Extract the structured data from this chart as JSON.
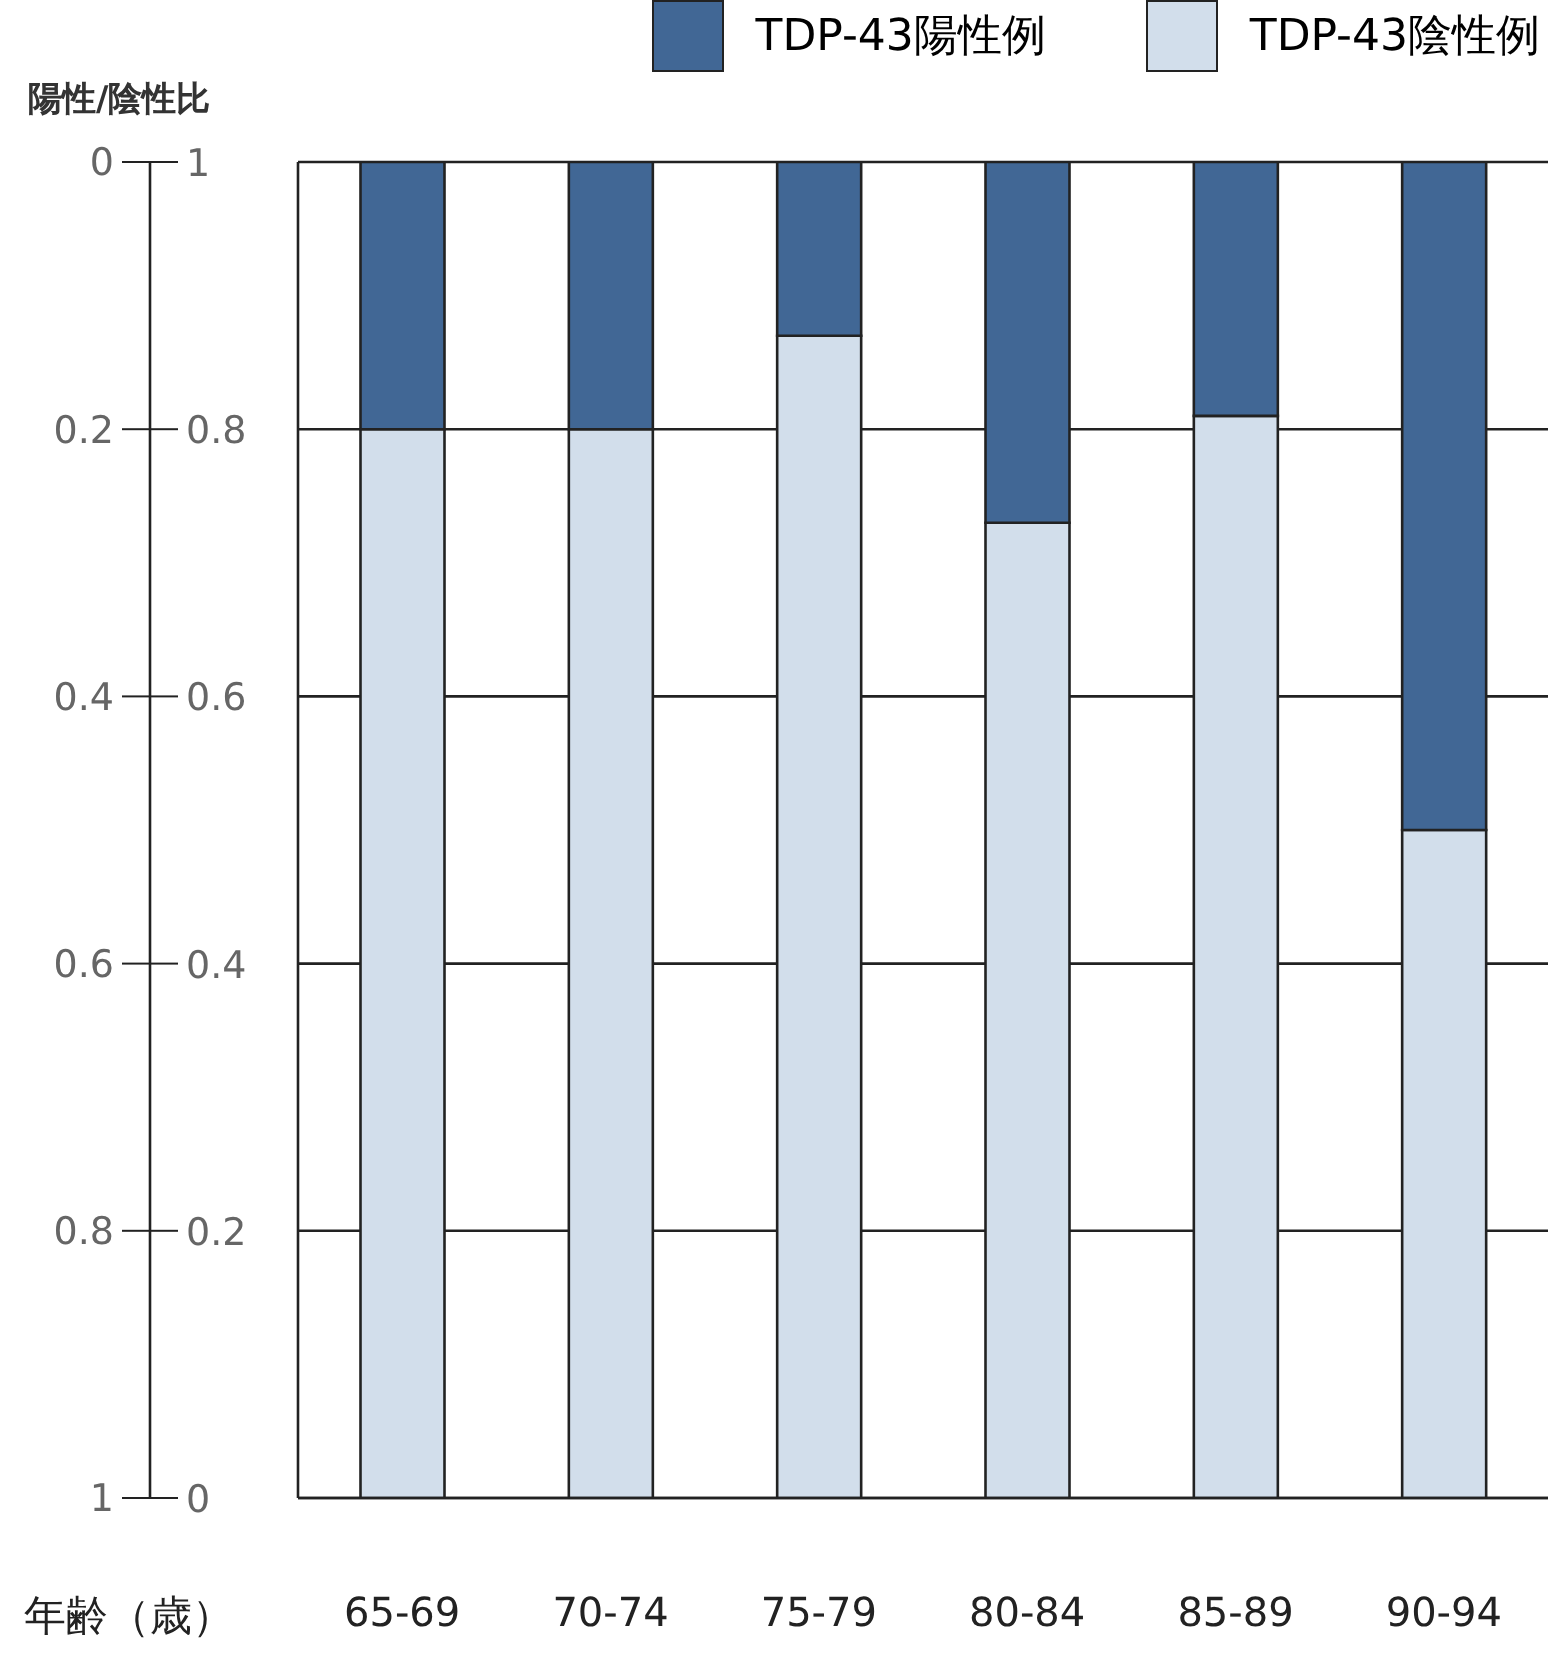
{
  "chart_data": {
    "type": "bar",
    "stacked": true,
    "y2label": "陽性/陰性比",
    "xlabel": "年齢（歳）",
    "categories": [
      "65-69",
      "70-74",
      "75-79",
      "80-84",
      "85-89",
      "90-94"
    ],
    "series": [
      {
        "name": "TDP-43陰性例",
        "color": "#d2deeb",
        "values": [
          0.8,
          0.8,
          0.87,
          0.73,
          0.81,
          0.5
        ]
      },
      {
        "name": "TDP-43陽性例",
        "color": "#416795",
        "values": [
          0.2,
          0.2,
          0.13,
          0.27,
          0.19,
          0.5
        ]
      }
    ],
    "ylim": [
      0,
      1
    ],
    "yticks": [
      0,
      0.2,
      0.4,
      0.6,
      0.8,
      1
    ],
    "y2lim": [
      1,
      0
    ],
    "y2ticks": [
      0,
      0.2,
      0.4,
      0.6,
      0.8,
      1
    ],
    "grid": "y",
    "legend": "top"
  }
}
